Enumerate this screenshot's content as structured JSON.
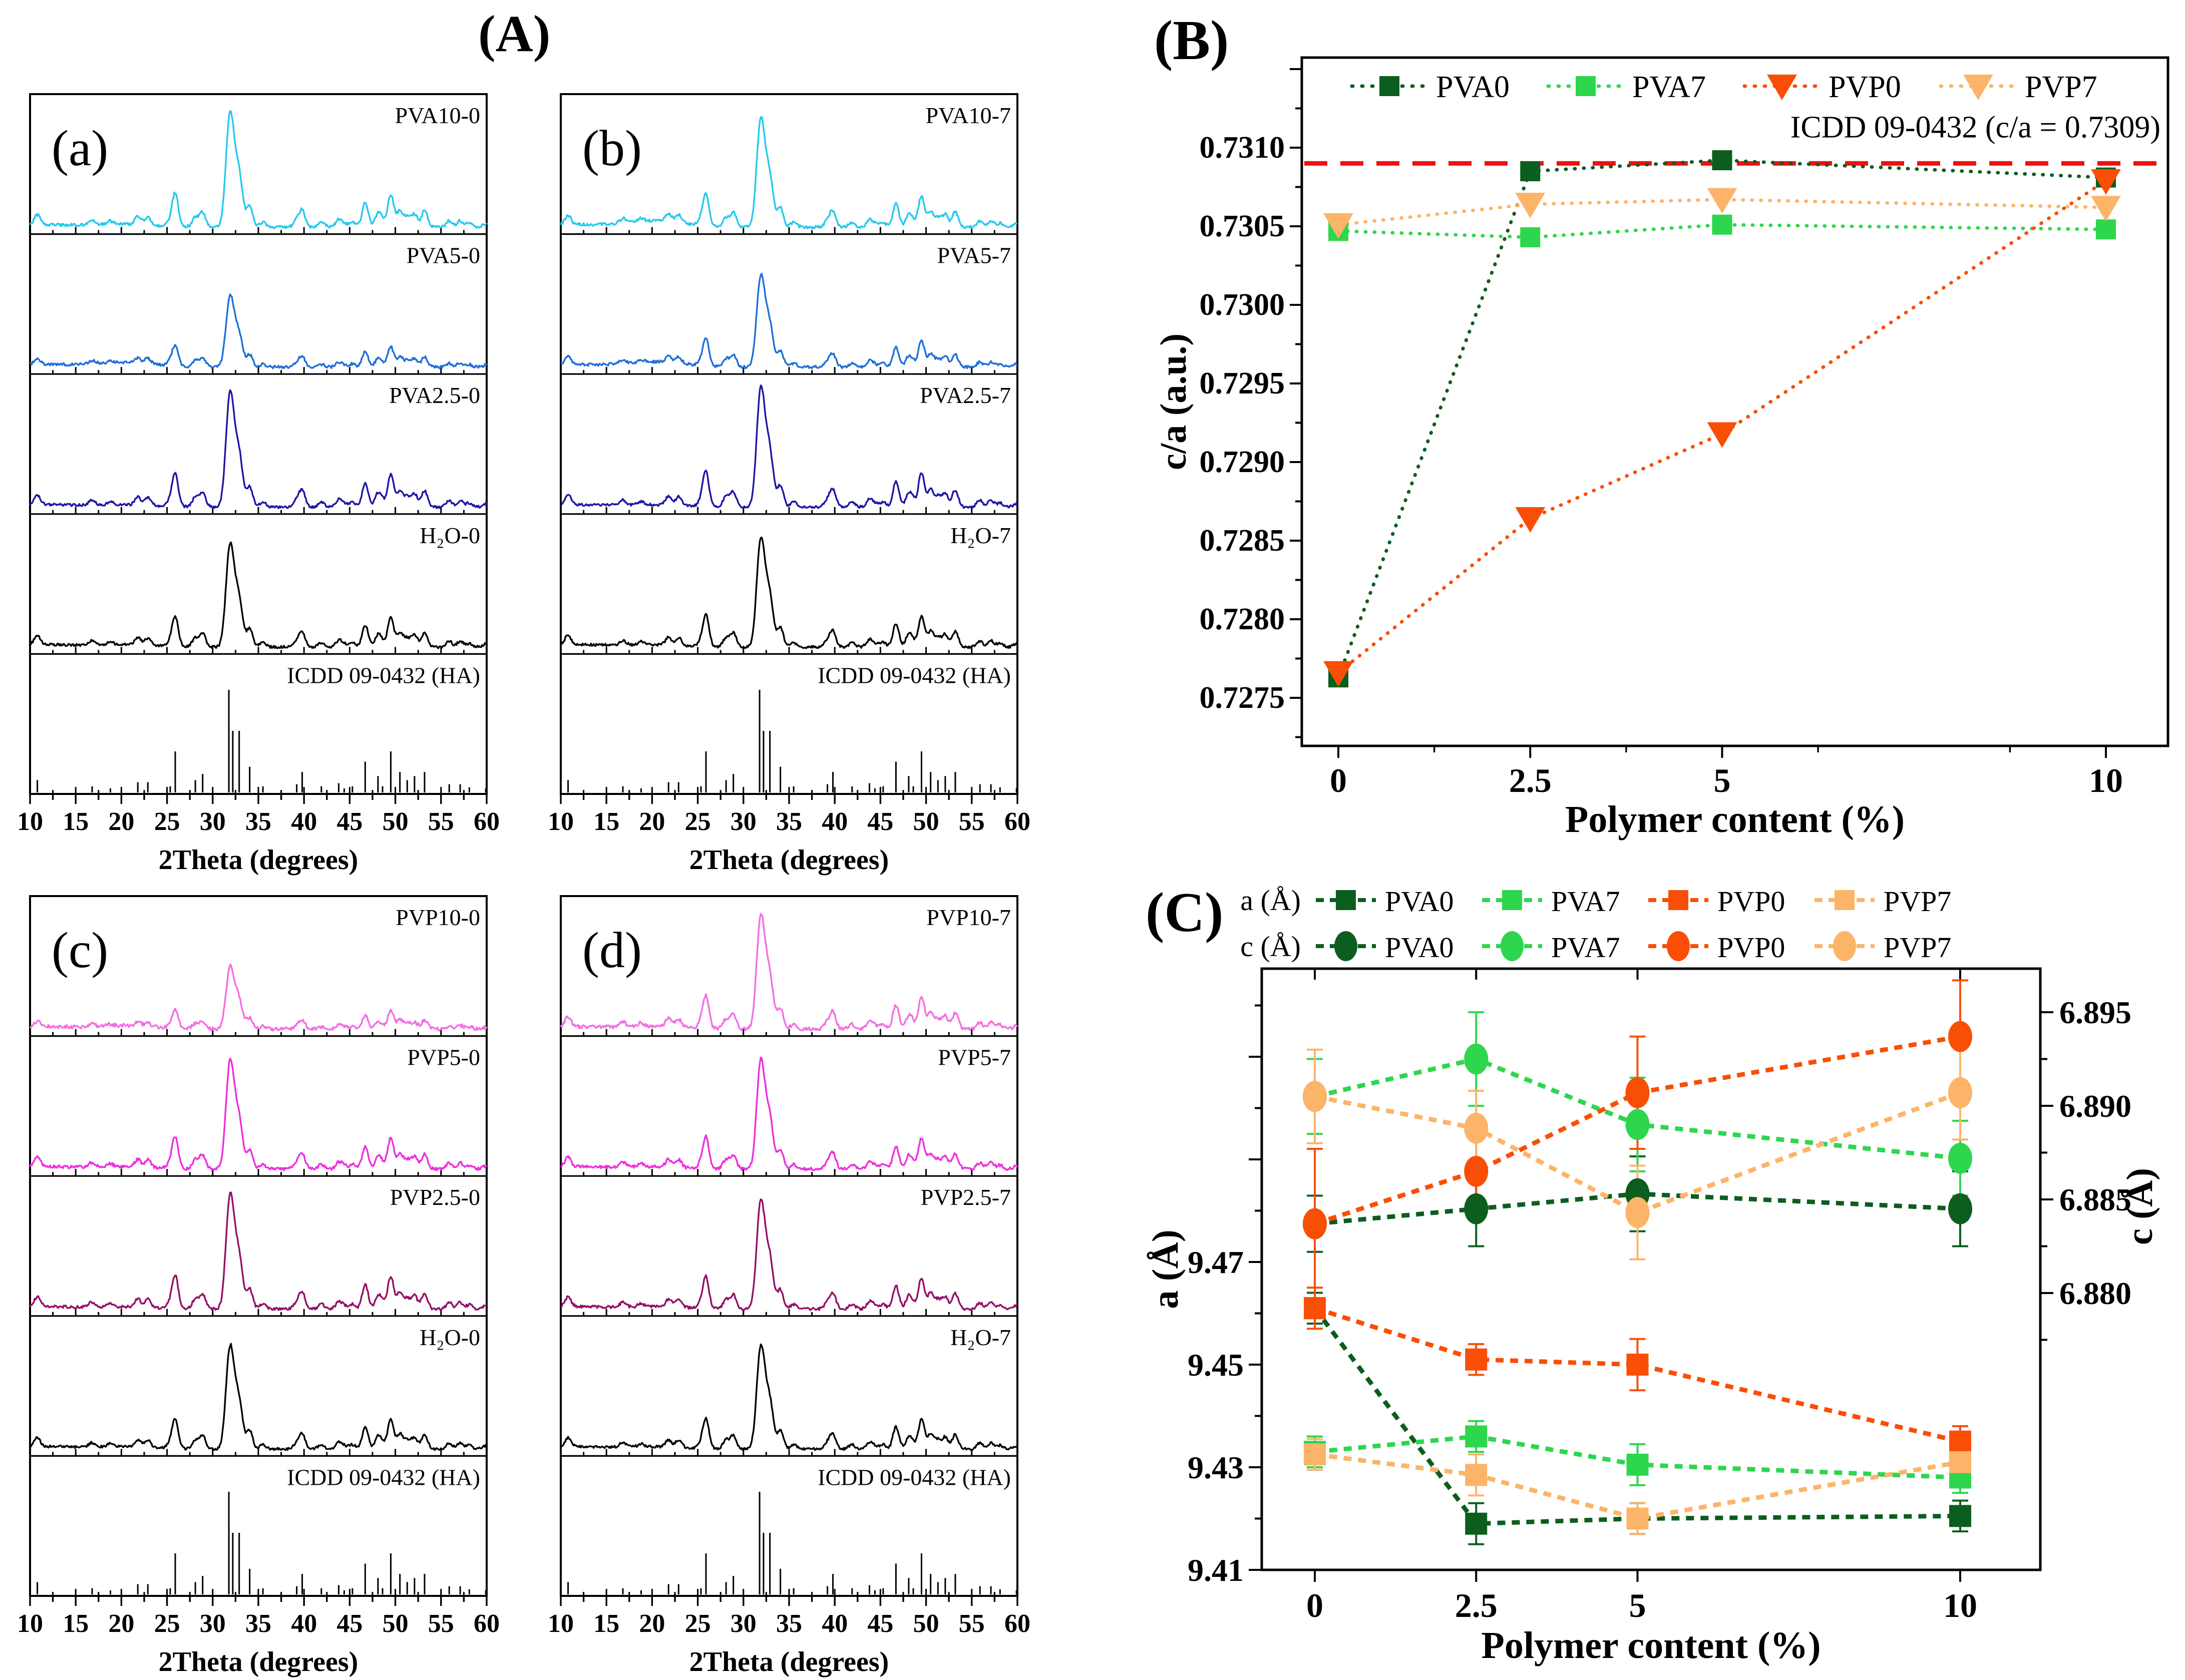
{
  "chart_data": [
    {
      "id": "A",
      "type": "line",
      "title": "(A)",
      "xlabel": "2Theta (degrees)",
      "x_range": [
        10,
        60
      ],
      "x_major_ticks": [
        10,
        15,
        20,
        25,
        30,
        35,
        40,
        45,
        50,
        55,
        60
      ],
      "icdd_label": "ICDD 09-0432 (HA)",
      "icdd_reference_peaks": [
        [
          10.8,
          12
        ],
        [
          16.8,
          6
        ],
        [
          18.8,
          4
        ],
        [
          21.8,
          10
        ],
        [
          22.9,
          10
        ],
        [
          25.35,
          6
        ],
        [
          25.9,
          40
        ],
        [
          28.1,
          12
        ],
        [
          28.9,
          18
        ],
        [
          31.77,
          100
        ],
        [
          32.2,
          60
        ],
        [
          32.9,
          60
        ],
        [
          34.05,
          25
        ],
        [
          35.5,
          6
        ],
        [
          39.2,
          8
        ],
        [
          39.8,
          20
        ],
        [
          41.9,
          6
        ],
        [
          43.8,
          9
        ],
        [
          44.4,
          4
        ],
        [
          45.3,
          6
        ],
        [
          46.7,
          30
        ],
        [
          48.1,
          16
        ],
        [
          48.6,
          6
        ],
        [
          49.5,
          40
        ],
        [
          50.5,
          20
        ],
        [
          51.3,
          12
        ],
        [
          52.1,
          16
        ],
        [
          53.2,
          20
        ],
        [
          55.9,
          8
        ],
        [
          57.1,
          8
        ],
        [
          58.1,
          5
        ],
        [
          59.9,
          4
        ]
      ],
      "subpanels": [
        {
          "letter": "(a)",
          "traces": [
            {
              "label": "PVA10-0",
              "color": "#25c9ef",
              "amp": 1.0,
              "hump": 5,
              "noise": 2.0
            },
            {
              "label": "PVA5-0",
              "color": "#1f6fda",
              "amp": 0.62,
              "hump": 9,
              "noise": 2.0
            },
            {
              "label": "PVA2.5-0",
              "color": "#1d16a6",
              "amp": 1.0,
              "hump": 4,
              "noise": 1.8
            },
            {
              "label": "H₂O-0",
              "color": "#000000",
              "amp": 0.9,
              "hump": 4,
              "noise": 1.8
            }
          ]
        },
        {
          "letter": "(b)",
          "traces": [
            {
              "label": "PVA10-7",
              "color": "#25c9ef",
              "amp": 0.95,
              "hump": 12,
              "noise": 2.0
            },
            {
              "label": "PVA5-7",
              "color": "#1f6fda",
              "amp": 0.8,
              "hump": 10,
              "noise": 2.0
            },
            {
              "label": "PVA2.5-7",
              "color": "#1d16a6",
              "amp": 1.05,
              "hump": 4,
              "noise": 1.8
            },
            {
              "label": "H₂O-7",
              "color": "#000000",
              "amp": 0.95,
              "hump": 4,
              "noise": 1.8
            }
          ]
        },
        {
          "letter": "(c)",
          "traces": [
            {
              "label": "PVP10-0",
              "color": "#f36fe3",
              "amp": 0.55,
              "hump": 6,
              "noise": 2.6
            },
            {
              "label": "PVP5-0",
              "color": "#ee2fdd",
              "amp": 0.95,
              "hump": 4,
              "noise": 2.2
            },
            {
              "label": "PVP2.5-0",
              "color": "#941067",
              "amp": 1.0,
              "hump": 4,
              "noise": 2.0
            },
            {
              "label": "H₂O-0",
              "color": "#000000",
              "amp": 0.9,
              "hump": 4,
              "noise": 1.8
            }
          ]
        },
        {
          "letter": "(d)",
          "traces": [
            {
              "label": "PVP10-7",
              "color": "#f36fe3",
              "amp": 1.0,
              "hump": 5,
              "noise": 2.4
            },
            {
              "label": "PVP5-7",
              "color": "#ee2fdd",
              "amp": 0.95,
              "hump": 4,
              "noise": 2.2
            },
            {
              "label": "PVP2.5-7",
              "color": "#941067",
              "amp": 0.95,
              "hump": 4,
              "noise": 2.0
            },
            {
              "label": "H₂O-7",
              "color": "#000000",
              "amp": 0.9,
              "hump": 4,
              "noise": 1.8
            }
          ]
        }
      ]
    },
    {
      "id": "B",
      "type": "scatter",
      "title": "(B)",
      "xlabel": "Polymer content (%)",
      "ylabel": "c/a (a.u.)",
      "x": [
        0,
        2.5,
        5,
        10
      ],
      "x_tick_labels": [
        "0",
        "2.5",
        "5",
        "10"
      ],
      "y_ticks": [
        "0.7275",
        "0.7280",
        "0.7285",
        "0.7290",
        "0.7295",
        "0.7300",
        "0.7305",
        "0.7310"
      ],
      "ylim": [
        0.7272,
        0.7316
      ],
      "grid": false,
      "legend_position": "top",
      "reference_line": {
        "value": 0.7309,
        "color": "#f01010",
        "label": "ICDD 09-0432 (c/a = 0.7309)"
      },
      "series": [
        {
          "name": "PVA0",
          "marker": "square",
          "color": "#0b5e1e",
          "values": [
            0.72763,
            0.73085,
            0.73092,
            0.73081
          ]
        },
        {
          "name": "PVA7",
          "marker": "square",
          "color": "#2ed64d",
          "values": [
            0.73047,
            0.73043,
            0.73051,
            0.73048
          ]
        },
        {
          "name": "PVP0",
          "marker": "triangle-down",
          "color": "#f94e05",
          "values": [
            0.72766,
            0.72864,
            0.72918,
            0.73079
          ]
        },
        {
          "name": "PVP7",
          "marker": "triangle-down",
          "color": "#fcb469",
          "values": [
            0.73051,
            0.73064,
            0.73067,
            0.73062
          ]
        }
      ]
    },
    {
      "id": "C",
      "type": "scatter",
      "title": "(C)",
      "xlabel": "Polymer content (%)",
      "ylabel_left": "a (Å)",
      "ylabel_right": "c (Å)",
      "x": [
        0,
        2.5,
        5,
        10
      ],
      "x_tick_labels": [
        "0",
        "2.5",
        "5",
        "10"
      ],
      "y_left_ticks": [
        "9.41",
        "9.43",
        "9.45",
        "9.47"
      ],
      "y_right_ticks": [
        "6.880",
        "6.885",
        "6.890",
        "6.895"
      ],
      "ylim_left": [
        9.41,
        9.5
      ],
      "ylim_right": [
        6.878,
        6.897
      ],
      "legend_prefix_a": "a (Å)",
      "legend_prefix_c": "c (Å)",
      "series_a": [
        {
          "name": "PVA0",
          "marker": "square",
          "color": "#0b5e1e",
          "values": [
            9.461,
            9.419,
            9.42,
            9.4205
          ],
          "errors": [
            0.003,
            0.004,
            0.003,
            0.003
          ]
        },
        {
          "name": "PVA7",
          "marker": "square",
          "color": "#2ed64d",
          "values": [
            9.433,
            9.436,
            9.4305,
            9.428
          ],
          "errors": [
            0.003,
            0.003,
            0.004,
            0.003
          ]
        },
        {
          "name": "PVP0",
          "marker": "square",
          "color": "#f94e05",
          "values": [
            9.461,
            9.451,
            9.45,
            9.435
          ],
          "errors": [
            0.004,
            0.003,
            0.005,
            0.003
          ]
        },
        {
          "name": "PVP7",
          "marker": "square",
          "color": "#fcb469",
          "values": [
            9.4325,
            9.4285,
            9.42,
            9.431
          ],
          "errors": [
            0.003,
            0.004,
            0.003,
            0.003
          ]
        }
      ],
      "series_c": [
        {
          "name": "PVA0",
          "marker": "circle",
          "color": "#0b5e1e",
          "values": [
            6.8837,
            6.8845,
            6.8853,
            6.8845
          ],
          "errors": [
            0.0015,
            0.002,
            0.002,
            0.002
          ]
        },
        {
          "name": "PVA7",
          "marker": "circle",
          "color": "#2ed64d",
          "values": [
            6.8905,
            6.8925,
            6.889,
            6.8872
          ],
          "errors": [
            0.002,
            0.0025,
            0.0025,
            0.002
          ]
        },
        {
          "name": "PVP0",
          "marker": "circle",
          "color": "#f94e05",
          "values": [
            6.8837,
            6.8865,
            6.8907,
            6.8937
          ],
          "errors": [
            0.004,
            0.0025,
            0.003,
            0.003
          ]
        },
        {
          "name": "PVP7",
          "marker": "circle",
          "color": "#fcb469",
          "values": [
            6.8905,
            6.8888,
            6.8843,
            6.8907
          ],
          "errors": [
            0.0025,
            0.002,
            0.0025,
            0.0025
          ]
        }
      ]
    }
  ]
}
